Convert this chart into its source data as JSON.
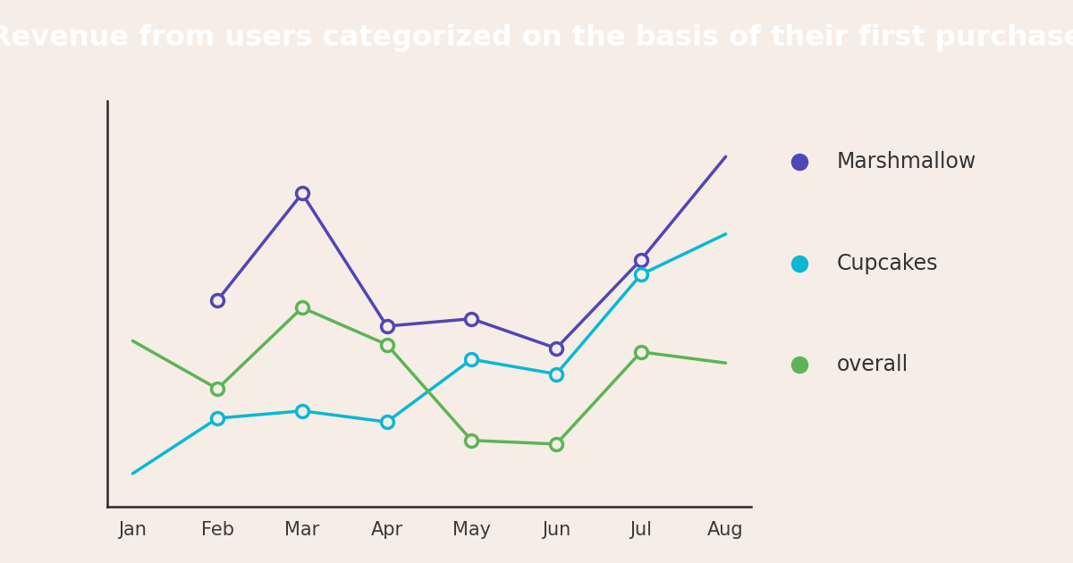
{
  "title": "Revenue from users categorized on the basis of their first purchase",
  "title_bg_color": "#5046b5",
  "title_text_color": "#ffffff",
  "bg_color": "#f5ede6",
  "x_labels": [
    "Jan",
    "Feb",
    "Mar",
    "Apr",
    "May",
    "Jun",
    "Jul",
    "Aug"
  ],
  "x_values": [
    0,
    1,
    2,
    3,
    4,
    5,
    6,
    7
  ],
  "marshmallow": {
    "color": "#5046b5",
    "marker_face": "#f5ede6",
    "values": [
      null,
      0.54,
      0.83,
      0.47,
      0.49,
      0.41,
      0.65,
      0.93
    ],
    "has_marker": [
      false,
      true,
      true,
      true,
      true,
      true,
      true,
      false
    ]
  },
  "cupcakes": {
    "color": "#09b8d4",
    "marker_face": "#f5ede6",
    "values": [
      0.07,
      0.22,
      0.24,
      0.21,
      0.38,
      0.34,
      0.61,
      0.72
    ],
    "has_marker": [
      false,
      true,
      true,
      true,
      true,
      true,
      true,
      false
    ]
  },
  "overall": {
    "color": "#5db356",
    "marker_face": "#f5ede6",
    "values": [
      0.43,
      0.3,
      0.52,
      0.42,
      0.16,
      0.15,
      0.4,
      0.37
    ],
    "has_marker": [
      false,
      true,
      true,
      true,
      true,
      true,
      true,
      false
    ]
  },
  "legend_labels": [
    "Marshmallow",
    "Cupcakes",
    "overall"
  ],
  "legend_series": [
    "marshmallow",
    "cupcakes",
    "overall"
  ],
  "title_fontsize": 23,
  "legend_fontsize": 17,
  "tick_fontsize": 15,
  "line_width": 2.5,
  "marker_size": 10,
  "marker_edge_width": 2.5
}
